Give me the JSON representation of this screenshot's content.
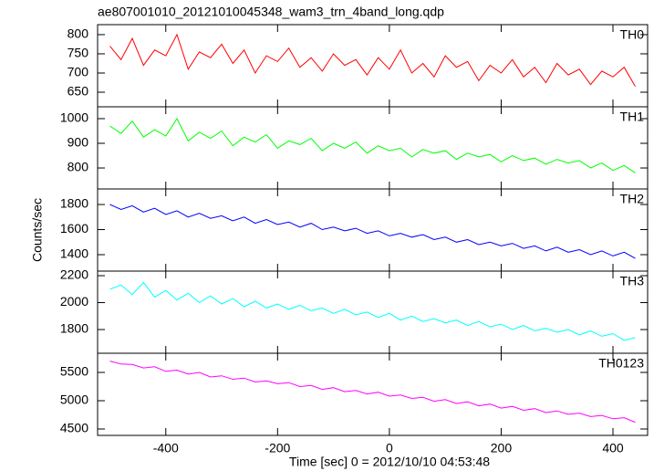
{
  "chart_data": [
    {
      "type": "line",
      "title": "ae807001010_20121010045348_wam3_trn_4band_long.qdp",
      "y_label": "Counts/sec",
      "x": [
        -500,
        -480,
        -460,
        -440,
        -420,
        -400,
        -380,
        -360,
        -340,
        -320,
        -300,
        -280,
        -260,
        -240,
        -220,
        -200,
        -180,
        -160,
        -140,
        -120,
        -100,
        -80,
        -60,
        -40,
        -20,
        0,
        20,
        40,
        60,
        80,
        100,
        120,
        140,
        160,
        180,
        200,
        220,
        240,
        260,
        280,
        300,
        320,
        340,
        360,
        380,
        400,
        420,
        440
      ],
      "series": [
        {
          "name": "TH0",
          "color": "#ff0000",
          "values": [
            770,
            735,
            790,
            720,
            760,
            745,
            800,
            710,
            755,
            740,
            775,
            725,
            760,
            700,
            745,
            730,
            765,
            715,
            740,
            705,
            750,
            720,
            735,
            695,
            740,
            710,
            760,
            700,
            725,
            690,
            745,
            715,
            730,
            680,
            720,
            700,
            735,
            690,
            715,
            675,
            725,
            695,
            710,
            670,
            705,
            690,
            715,
            665
          ]
        }
      ],
      "xlim": [
        -522,
        462
      ],
      "ylim": [
        612,
        826
      ],
      "yticks": [
        650,
        700,
        750,
        800
      ]
    },
    {
      "type": "line",
      "x": [
        -500,
        -480,
        -460,
        -440,
        -420,
        -400,
        -380,
        -360,
        -340,
        -320,
        -300,
        -280,
        -260,
        -240,
        -220,
        -200,
        -180,
        -160,
        -140,
        -120,
        -100,
        -80,
        -60,
        -40,
        -20,
        0,
        20,
        40,
        60,
        80,
        100,
        120,
        140,
        160,
        180,
        200,
        220,
        240,
        260,
        280,
        300,
        320,
        340,
        360,
        380,
        400,
        420,
        440
      ],
      "series": [
        {
          "name": "TH1",
          "color": "#00ff00",
          "values": [
            970,
            940,
            990,
            925,
            955,
            930,
            1000,
            910,
            945,
            920,
            950,
            890,
            925,
            905,
            935,
            880,
            910,
            895,
            920,
            870,
            900,
            880,
            905,
            860,
            890,
            870,
            880,
            845,
            875,
            860,
            870,
            835,
            860,
            845,
            855,
            825,
            850,
            830,
            840,
            815,
            835,
            820,
            830,
            800,
            820,
            790,
            810,
            780
          ]
        }
      ],
      "xlim": [
        -522,
        462
      ],
      "ylim": [
        715,
        1048
      ],
      "yticks": [
        800,
        900,
        1000
      ]
    },
    {
      "type": "line",
      "x": [
        -500,
        -480,
        -460,
        -440,
        -420,
        -400,
        -380,
        -360,
        -340,
        -320,
        -300,
        -280,
        -260,
        -240,
        -220,
        -200,
        -180,
        -160,
        -140,
        -120,
        -100,
        -80,
        -60,
        -40,
        -20,
        0,
        20,
        40,
        60,
        80,
        100,
        120,
        140,
        160,
        180,
        200,
        220,
        240,
        260,
        280,
        300,
        320,
        340,
        360,
        380,
        400,
        420,
        440
      ],
      "series": [
        {
          "name": "TH2",
          "color": "#0000ff",
          "values": [
            1800,
            1760,
            1790,
            1740,
            1770,
            1720,
            1750,
            1700,
            1730,
            1690,
            1710,
            1670,
            1700,
            1650,
            1680,
            1640,
            1660,
            1620,
            1650,
            1600,
            1620,
            1590,
            1610,
            1570,
            1590,
            1550,
            1570,
            1540,
            1560,
            1520,
            1540,
            1500,
            1520,
            1480,
            1500,
            1470,
            1490,
            1450,
            1470,
            1430,
            1460,
            1420,
            1440,
            1400,
            1430,
            1390,
            1420,
            1370
          ]
        }
      ],
      "xlim": [
        -522,
        462
      ],
      "ylim": [
        1269,
        1924
      ],
      "yticks": [
        1400,
        1600,
        1800
      ]
    },
    {
      "type": "line",
      "x": [
        -500,
        -480,
        -460,
        -440,
        -420,
        -400,
        -380,
        -360,
        -340,
        -320,
        -300,
        -280,
        -260,
        -240,
        -220,
        -200,
        -180,
        -160,
        -140,
        -120,
        -100,
        -80,
        -60,
        -40,
        -20,
        0,
        20,
        40,
        60,
        80,
        100,
        120,
        140,
        160,
        180,
        200,
        220,
        240,
        260,
        280,
        300,
        320,
        340,
        360,
        380,
        400,
        420,
        440
      ],
      "series": [
        {
          "name": "TH3",
          "color": "#00ffff",
          "values": [
            2100,
            2130,
            2060,
            2150,
            2040,
            2090,
            2020,
            2070,
            2000,
            2050,
            1990,
            2030,
            1970,
            2010,
            1960,
            1990,
            1950,
            1980,
            1940,
            1960,
            1920,
            1950,
            1910,
            1930,
            1890,
            1920,
            1870,
            1900,
            1860,
            1880,
            1850,
            1870,
            1830,
            1860,
            1820,
            1840,
            1800,
            1830,
            1790,
            1810,
            1780,
            1800,
            1760,
            1790,
            1750,
            1770,
            1720,
            1740
          ]
        }
      ],
      "xlim": [
        -522,
        462
      ],
      "ylim": [
        1624,
        2234
      ],
      "yticks": [
        1800,
        2000,
        2200
      ]
    },
    {
      "type": "line",
      "x_label": "Time [sec] 0 = 2012/10/10 04:53:48",
      "x": [
        -500,
        -480,
        -460,
        -440,
        -420,
        -400,
        -380,
        -360,
        -340,
        -320,
        -300,
        -280,
        -260,
        -240,
        -220,
        -200,
        -180,
        -160,
        -140,
        -120,
        -100,
        -80,
        -60,
        -40,
        -20,
        0,
        20,
        40,
        60,
        80,
        100,
        120,
        140,
        160,
        180,
        200,
        220,
        240,
        260,
        280,
        300,
        320,
        340,
        360,
        380,
        400,
        420,
        440
      ],
      "series": [
        {
          "name": "TH0123",
          "color": "#ff00ff",
          "values": [
            5700,
            5650,
            5640,
            5580,
            5600,
            5520,
            5540,
            5470,
            5500,
            5420,
            5440,
            5380,
            5400,
            5330,
            5350,
            5300,
            5320,
            5250,
            5270,
            5200,
            5230,
            5160,
            5180,
            5120,
            5150,
            5080,
            5100,
            5040,
            5060,
            4990,
            5020,
            4950,
            4980,
            4910,
            4940,
            4870,
            4900,
            4830,
            4860,
            4790,
            4820,
            4760,
            4780,
            4720,
            4740,
            4680,
            4700,
            4620
          ]
        }
      ],
      "xlim": [
        -522,
        462
      ],
      "ylim": [
        4387,
        5839
      ],
      "yticks": [
        4500,
        5000,
        5500
      ],
      "xticks": [
        -400,
        -200,
        0,
        200,
        400
      ]
    }
  ]
}
